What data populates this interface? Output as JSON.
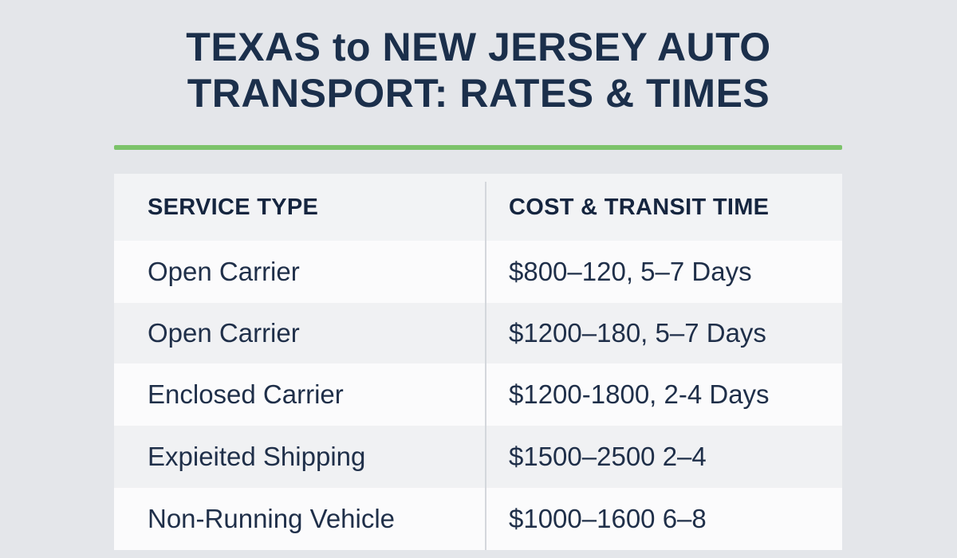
{
  "title": {
    "line1": "TEXAS to NEW JERSEY AUTO",
    "line2": "TRANSPORT: RATES & TIMES"
  },
  "colors": {
    "accent": "#7cc36a",
    "heading": "#1b2f4b",
    "background": "#e4e6ea"
  },
  "table": {
    "headers": [
      "SERVICE TYPE",
      "COST & TRANSIT TIME"
    ],
    "rows": [
      [
        "Open Carrier",
        "$800–120, 5–7 Days"
      ],
      [
        "Open Carrier",
        "$1200–180, 5–7 Days"
      ],
      [
        "Enclosed Carrier",
        "$1200-1800, 2-4 Days"
      ],
      [
        "Expieited Shipping",
        "$1500–2500 2–4"
      ],
      [
        "Non-Running Vehicle",
        "$1000–1600 6–8"
      ]
    ]
  }
}
